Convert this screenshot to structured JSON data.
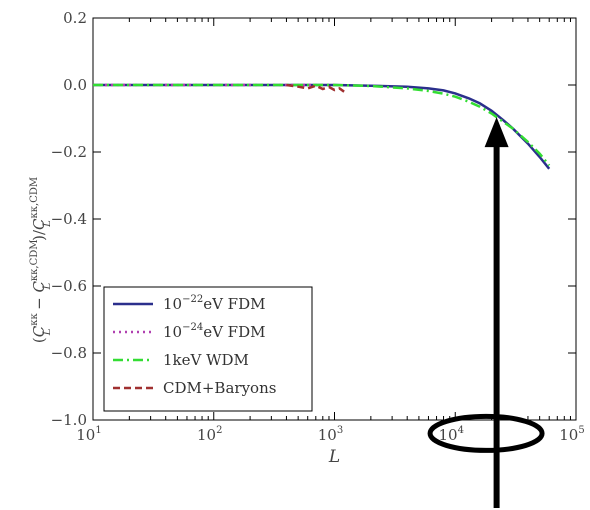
{
  "chart_data": {
    "type": "line",
    "xscale": "log",
    "xlim": [
      10,
      100000
    ],
    "ylim": [
      -1.0,
      0.2
    ],
    "xlabel": "L",
    "ylabel": "(C_L^{κκ} − C_L^{κκ,CDM}) / C_L^{κκ,CDM}",
    "ylabel_parts": {
      "open": "(",
      "c1": "C",
      "c1_sup": "κκ",
      "c1_sub": "L",
      "minus": " − ",
      "c2": "C",
      "c2_sup": "κκ,CDM",
      "c2_sub": "L",
      "close": ")/",
      "c3": "C",
      "c3_sup": "κκ,CDM",
      "c3_sub": "L"
    },
    "xtick_labels": [
      {
        "value": 10,
        "base": "10",
        "exp": "1"
      },
      {
        "value": 100,
        "base": "10",
        "exp": "2"
      },
      {
        "value": 1000,
        "base": "10",
        "exp": "3"
      },
      {
        "value": 10000,
        "base": "10",
        "exp": "4"
      },
      {
        "value": 100000,
        "base": "10",
        "exp": "5"
      }
    ],
    "ytick_labels": [
      {
        "value": 0.2,
        "label": "0.2"
      },
      {
        "value": 0.0,
        "label": "0.0"
      },
      {
        "value": -0.2,
        "label": "−0.2"
      },
      {
        "value": -0.4,
        "label": "−0.4"
      },
      {
        "value": -0.6,
        "label": "−0.6"
      },
      {
        "value": -0.8,
        "label": "−0.8"
      },
      {
        "value": -1.0,
        "label": "−1.0"
      }
    ],
    "grid": false,
    "legend_position": "lower-left",
    "series": [
      {
        "name": "10^{-22}eV FDM",
        "legend_base": "10",
        "legend_exp": "−22",
        "legend_rest": "eV FDM",
        "color": "#2b2f8c",
        "style": "solid",
        "x": [
          10,
          100,
          1000,
          2000,
          4000,
          6000,
          8000,
          10000,
          13000,
          16000,
          20000,
          25000,
          30000,
          40000,
          50000,
          60000
        ],
        "y": [
          0.0,
          0.0,
          0.0,
          -0.002,
          -0.005,
          -0.01,
          -0.016,
          -0.025,
          -0.04,
          -0.055,
          -0.077,
          -0.105,
          -0.13,
          -0.175,
          -0.215,
          -0.25
        ]
      },
      {
        "name": "10^{-24}eV FDM",
        "legend_base": "10",
        "legend_exp": "−24",
        "legend_rest": "eV FDM",
        "color": "#b040b0",
        "style": "dotted",
        "x": [
          10,
          50,
          100,
          200,
          400,
          700,
          1000
        ],
        "y": [
          0.0,
          0.0,
          0.0,
          0.0,
          0.0,
          0.0,
          0.0
        ]
      },
      {
        "name": "1keV WDM",
        "legend_base": "1keV WDM",
        "legend_exp": "",
        "legend_rest": "",
        "color": "#33dd33",
        "style": "dashdot",
        "x": [
          10,
          100,
          1000,
          2000,
          4000,
          6000,
          8000,
          10000,
          13000,
          16000,
          20000,
          25000,
          30000,
          40000,
          50000,
          60000
        ],
        "y": [
          0.0,
          0.0,
          0.0,
          -0.003,
          -0.01,
          -0.018,
          -0.026,
          -0.035,
          -0.05,
          -0.065,
          -0.085,
          -0.11,
          -0.13,
          -0.17,
          -0.205,
          -0.24
        ]
      },
      {
        "name": "CDM+Baryons",
        "legend_base": "CDM+Baryons",
        "legend_exp": "",
        "legend_rest": "",
        "color": "#a03030",
        "style": "dashed",
        "x": [
          400,
          500,
          600,
          700,
          800,
          900,
          1000,
          1100,
          1200
        ],
        "y": [
          0.0,
          -0.005,
          -0.01,
          -0.002,
          -0.012,
          -0.006,
          -0.015,
          -0.01,
          -0.02
        ]
      }
    ],
    "annotations": [
      {
        "type": "arrow",
        "color": "#000000",
        "from": {
          "x": 22000,
          "y": -1.28
        },
        "to": {
          "x": 22000,
          "y": -0.09
        }
      },
      {
        "type": "ellipse",
        "color": "#000000",
        "center": {
          "x": 18000,
          "y": -1.04
        }
      }
    ]
  }
}
